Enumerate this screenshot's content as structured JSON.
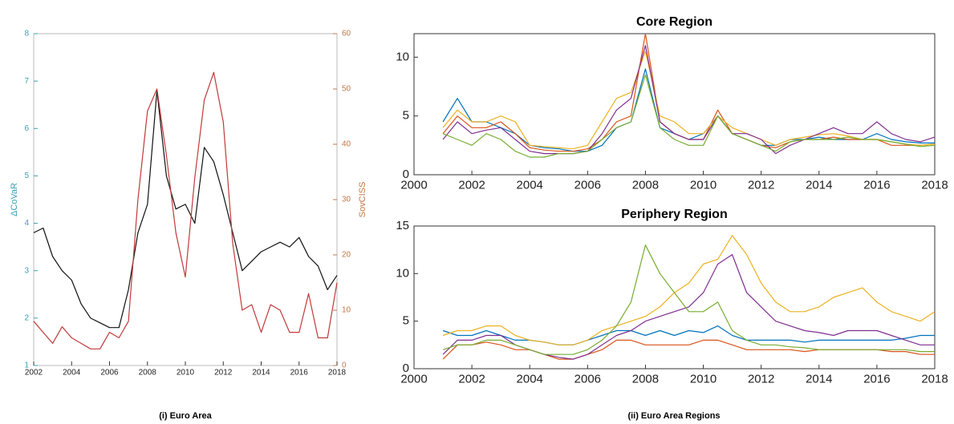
{
  "chart_data": [
    {
      "type": "line",
      "y_label": "ΔCoVaR",
      "y2_label": "SovCISS",
      "caption": "(i) Euro Area",
      "x": [
        2002,
        2002.5,
        2003,
        2003.5,
        2004,
        2004.5,
        2005,
        2005.5,
        2006,
        2006.5,
        2007,
        2007.5,
        2008,
        2008.5,
        2009,
        2009.5,
        2010,
        2010.5,
        2011,
        2011.5,
        2012,
        2012.5,
        2013,
        2013.5,
        2014,
        2014.5,
        2015,
        2015.5,
        2016,
        2016.5,
        2017,
        2017.5,
        2018
      ],
      "xlim": [
        2002,
        2018
      ],
      "xticks": [
        2002,
        2004,
        2006,
        2008,
        2010,
        2012,
        2014,
        2016,
        2018
      ],
      "ylim": [
        1,
        8
      ],
      "yticks": [
        1,
        2,
        3,
        4,
        5,
        6,
        7,
        8
      ],
      "y2lim": [
        0,
        60
      ],
      "y2ticks": [
        0,
        10,
        20,
        30,
        40,
        50,
        60
      ],
      "y_axis_color": "#3a9fb5",
      "y2_axis_color": "#c0784a",
      "series": [
        {
          "color": "#111111",
          "values": [
            3.8,
            3.9,
            3.3,
            3.0,
            2.8,
            2.3,
            2.0,
            1.9,
            1.8,
            1.8,
            2.6,
            3.8,
            4.4,
            6.8,
            5.0,
            4.3,
            4.4,
            4.0,
            5.6,
            5.3,
            4.6,
            3.8,
            3.0,
            3.2,
            3.4,
            3.5,
            3.6,
            3.5,
            3.7,
            3.3,
            3.1,
            2.6,
            2.9
          ]
        },
        {
          "color": "#c0393b",
          "axis": "y2",
          "values": [
            8,
            6,
            4,
            7,
            5,
            4,
            3,
            3,
            6,
            5,
            8,
            30,
            46,
            50,
            38,
            24,
            16,
            34,
            48,
            53,
            44,
            22,
            10,
            11,
            6,
            11,
            10,
            6,
            6,
            13,
            5,
            5,
            15
          ]
        }
      ]
    },
    {
      "type": "line",
      "title": "Core Region",
      "x": [
        2001,
        2001.5,
        2002,
        2002.5,
        2003,
        2003.5,
        2004,
        2004.5,
        2005,
        2005.5,
        2006,
        2006.5,
        2007,
        2007.5,
        2008,
        2008.5,
        2009,
        2009.5,
        2010,
        2010.5,
        2011,
        2011.5,
        2012,
        2012.5,
        2013,
        2013.5,
        2014,
        2014.5,
        2015,
        2015.5,
        2016,
        2016.5,
        2017,
        2017.5,
        2018
      ],
      "xlim": [
        2000,
        2018
      ],
      "xticks": [
        2000,
        2002,
        2004,
        2006,
        2008,
        2010,
        2012,
        2014,
        2016,
        2018
      ],
      "ylim": [
        0,
        12
      ],
      "yticks": [
        0,
        5,
        10
      ],
      "series": [
        {
          "color": "#0072bd",
          "values": [
            4.5,
            6.5,
            4.5,
            4.5,
            4.0,
            3.5,
            2.5,
            2.3,
            2.2,
            2.0,
            2.0,
            2.5,
            4.0,
            4.5,
            9.0,
            4.0,
            3.5,
            3.0,
            3.5,
            5.0,
            3.5,
            3.0,
            2.5,
            2.5,
            3.0,
            3.0,
            3.2,
            3.0,
            3.0,
            3.0,
            3.5,
            3.0,
            2.8,
            2.7,
            2.7
          ]
        },
        {
          "color": "#d95319",
          "values": [
            3.5,
            5.0,
            4.0,
            4.0,
            4.5,
            3.5,
            2.3,
            2.1,
            2.0,
            2.0,
            2.2,
            3.0,
            4.5,
            5.0,
            12.0,
            4.5,
            3.5,
            3.0,
            3.0,
            5.5,
            3.5,
            3.0,
            2.5,
            2.3,
            2.8,
            3.0,
            3.0,
            3.2,
            3.0,
            3.0,
            3.0,
            2.5,
            2.5,
            2.5,
            2.6
          ]
        },
        {
          "color": "#edb120",
          "values": [
            4.0,
            5.5,
            4.5,
            4.5,
            5.0,
            4.5,
            2.5,
            2.4,
            2.3,
            2.2,
            2.5,
            4.5,
            6.5,
            7.0,
            10.5,
            5.0,
            4.5,
            3.5,
            3.5,
            5.0,
            4.0,
            3.5,
            3.0,
            2.5,
            3.0,
            3.2,
            3.4,
            3.5,
            3.3,
            3.0,
            3.0,
            2.8,
            2.6,
            2.5,
            2.6
          ]
        },
        {
          "color": "#7e2f8e",
          "values": [
            3.0,
            4.5,
            3.5,
            3.8,
            4.0,
            3.0,
            2.0,
            1.8,
            1.8,
            1.8,
            2.0,
            3.5,
            5.5,
            6.5,
            11.0,
            4.5,
            3.5,
            3.0,
            3.0,
            5.0,
            3.5,
            3.5,
            3.0,
            1.8,
            2.5,
            3.0,
            3.5,
            4.0,
            3.5,
            3.5,
            4.5,
            3.5,
            3.0,
            2.8,
            3.2
          ]
        },
        {
          "color": "#77ac30",
          "values": [
            3.5,
            3.0,
            2.5,
            3.5,
            3.0,
            2.0,
            1.5,
            1.5,
            1.8,
            1.8,
            2.0,
            3.0,
            4.0,
            4.5,
            8.5,
            4.0,
            3.0,
            2.5,
            2.5,
            5.0,
            3.5,
            3.0,
            2.5,
            2.0,
            2.8,
            3.0,
            3.0,
            3.0,
            3.2,
            3.0,
            3.0,
            2.8,
            2.6,
            2.4,
            2.5
          ]
        }
      ]
    },
    {
      "type": "line",
      "title": "Periphery Region",
      "caption": "(ii) Euro Area Regions",
      "x": [
        2001,
        2001.5,
        2002,
        2002.5,
        2003,
        2003.5,
        2004,
        2004.5,
        2005,
        2005.5,
        2006,
        2006.5,
        2007,
        2007.5,
        2008,
        2008.5,
        2009,
        2009.5,
        2010,
        2010.5,
        2011,
        2011.5,
        2012,
        2012.5,
        2013,
        2013.5,
        2014,
        2014.5,
        2015,
        2015.5,
        2016,
        2016.5,
        2017,
        2017.5,
        2018
      ],
      "xlim": [
        2000,
        2018
      ],
      "xticks": [
        2000,
        2002,
        2004,
        2006,
        2008,
        2010,
        2012,
        2014,
        2016,
        2018
      ],
      "ylim": [
        0,
        15
      ],
      "yticks": [
        0,
        5,
        10,
        15
      ],
      "series": [
        {
          "color": "#0072bd",
          "values": [
            4.0,
            3.5,
            3.5,
            4.0,
            3.5,
            3.0,
            3.0,
            2.8,
            2.5,
            2.5,
            3.0,
            3.5,
            4.0,
            4.0,
            3.5,
            4.0,
            3.5,
            4.0,
            3.8,
            4.5,
            3.5,
            3.0,
            3.0,
            3.0,
            3.0,
            2.8,
            3.0,
            3.0,
            3.0,
            3.0,
            3.0,
            3.0,
            3.2,
            3.5,
            3.5
          ]
        },
        {
          "color": "#d95319",
          "values": [
            1.0,
            2.5,
            2.5,
            2.8,
            2.5,
            2.0,
            2.0,
            1.5,
            1.0,
            1.0,
            1.5,
            2.0,
            3.0,
            3.0,
            2.5,
            2.5,
            2.5,
            2.5,
            3.0,
            3.0,
            2.5,
            2.0,
            2.0,
            2.0,
            2.0,
            1.8,
            2.0,
            2.0,
            2.0,
            2.0,
            2.0,
            1.8,
            1.8,
            1.5,
            1.5
          ]
        },
        {
          "color": "#edb120",
          "values": [
            3.5,
            4.0,
            4.0,
            4.5,
            4.5,
            3.5,
            3.0,
            2.8,
            2.5,
            2.5,
            3.0,
            4.0,
            4.5,
            5.0,
            5.5,
            6.5,
            8.0,
            9.0,
            11.0,
            11.5,
            14.0,
            12.0,
            9.0,
            7.0,
            6.0,
            6.0,
            6.5,
            7.5,
            8.0,
            8.5,
            7.0,
            6.0,
            5.5,
            5.0,
            6.0
          ]
        },
        {
          "color": "#7e2f8e",
          "values": [
            1.5,
            3.0,
            3.0,
            3.5,
            3.5,
            2.5,
            2.0,
            1.5,
            1.2,
            1.0,
            1.5,
            2.5,
            3.5,
            4.0,
            5.0,
            5.5,
            6.0,
            6.5,
            8.0,
            11.0,
            12.0,
            8.0,
            6.5,
            5.0,
            4.5,
            4.0,
            3.8,
            3.5,
            4.0,
            4.0,
            4.0,
            3.5,
            3.0,
            2.5,
            2.5
          ]
        },
        {
          "color": "#77ac30",
          "values": [
            2.0,
            2.5,
            2.5,
            3.0,
            3.0,
            2.5,
            2.0,
            1.5,
            1.5,
            1.5,
            2.0,
            3.0,
            4.5,
            7.0,
            13.0,
            10.0,
            8.0,
            6.0,
            6.0,
            7.0,
            4.0,
            3.0,
            2.5,
            2.5,
            2.3,
            2.2,
            2.0,
            2.0,
            2.0,
            2.0,
            2.0,
            2.0,
            2.0,
            1.8,
            1.8
          ]
        }
      ]
    }
  ]
}
